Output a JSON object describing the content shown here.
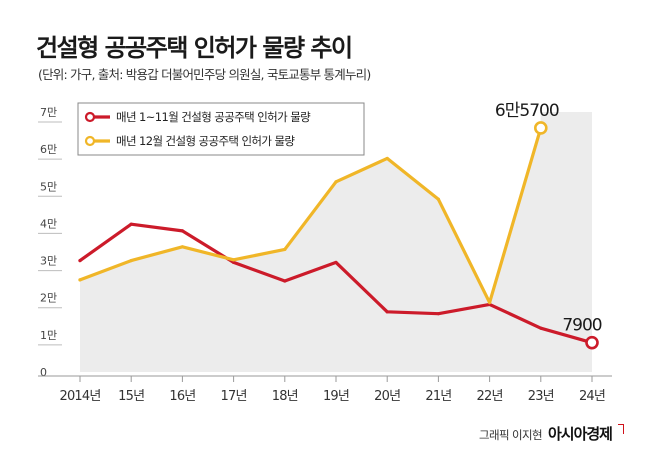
{
  "header": {
    "title": "건설형 공공주택 인허가 물량 추이",
    "subtitle": "(단위: 가구, 출처: 박용갑 더불어민주당 의원실, 국토교통부 통계누리)"
  },
  "credit": {
    "author": "그래픽 이지현",
    "brand": "아시아경제"
  },
  "colors": {
    "red": "#cc1b2a",
    "yellow": "#f0b628",
    "area": "#ececec",
    "axis": "#9a9a9a"
  },
  "chart_data": {
    "type": "line",
    "title": "건설형 공공주택 인허가 물량 추이",
    "categories": [
      "2014년",
      "15년",
      "16년",
      "17년",
      "18년",
      "19년",
      "20년",
      "21년",
      "22년",
      "23년",
      "24년"
    ],
    "y_ticks": [
      {
        "value": 0,
        "label": "0"
      },
      {
        "value": 10000,
        "label": "1만"
      },
      {
        "value": 20000,
        "label": "2만"
      },
      {
        "value": 30000,
        "label": "3만"
      },
      {
        "value": 40000,
        "label": "4만"
      },
      {
        "value": 50000,
        "label": "5만"
      },
      {
        "value": 60000,
        "label": "6만"
      },
      {
        "value": 70000,
        "label": "7만"
      }
    ],
    "ylim": [
      0,
      70000
    ],
    "legend_position": "top-left",
    "series": [
      {
        "name": "매년 1~11월 건설형 공공주택 인허가 물량",
        "color_key": "red",
        "values": [
          30000,
          39800,
          38000,
          29500,
          24500,
          29500,
          16200,
          15700,
          18200,
          11800,
          7900
        ],
        "end_marker": true,
        "end_label": "7900"
      },
      {
        "name": "매년 12월 건설형 공공주택 인허가 물량",
        "color_key": "yellow",
        "values": [
          24800,
          30000,
          33700,
          30200,
          33000,
          51200,
          57500,
          46500,
          18700,
          65700,
          null
        ],
        "end_marker": true,
        "end_label": "6만5700"
      }
    ]
  }
}
